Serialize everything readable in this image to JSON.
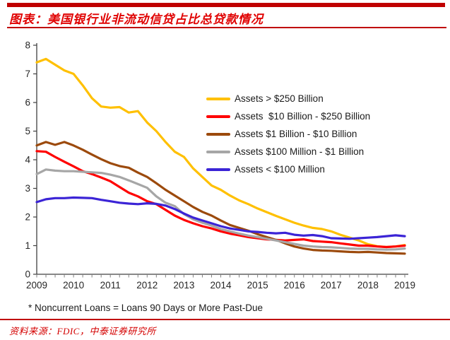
{
  "header": {
    "title": "图表：美国银行业非流动信贷占比总贷款情况"
  },
  "footnote": "* Noncurrent Loans = Loans 90 Days or More Past-Due",
  "source": "资料来源：FDIC，中泰证券研究所",
  "colors": {
    "accent_red": "#c00000",
    "title_text": "#e00000",
    "axis": "#404040",
    "tick": "#808080",
    "label": "#262626"
  },
  "chart_data": {
    "type": "line",
    "title": "",
    "xlabel": "",
    "ylabel": "",
    "x_range": [
      2009,
      2019
    ],
    "y_range": [
      0,
      8
    ],
    "x_ticks": [
      2009,
      2010,
      2011,
      2012,
      2013,
      2014,
      2015,
      2016,
      2017,
      2018,
      2019
    ],
    "y_ticks": [
      0,
      1,
      2,
      3,
      4,
      5,
      6,
      7,
      8
    ],
    "x_minor_step": 0.25,
    "grid": false,
    "legend_position": "top-right-inside",
    "x": [
      2009,
      2009.25,
      2009.5,
      2009.75,
      2010,
      2010.25,
      2010.5,
      2010.75,
      2011,
      2011.25,
      2011.5,
      2011.75,
      2012,
      2012.25,
      2012.5,
      2012.75,
      2013,
      2013.25,
      2013.5,
      2013.75,
      2014,
      2014.25,
      2014.5,
      2014.75,
      2015,
      2015.25,
      2015.5,
      2015.75,
      2016,
      2016.25,
      2016.5,
      2016.75,
      2017,
      2017.25,
      2017.5,
      2017.75,
      2018,
      2018.25,
      2018.5,
      2018.75,
      2019
    ],
    "series": [
      {
        "name": "Assets > $250 Billion",
        "color": "#ffc000",
        "values": [
          7.4,
          7.52,
          7.32,
          7.12,
          7.0,
          6.6,
          6.15,
          5.86,
          5.82,
          5.84,
          5.65,
          5.7,
          5.3,
          5.0,
          4.62,
          4.28,
          4.1,
          3.7,
          3.4,
          3.1,
          2.95,
          2.75,
          2.58,
          2.45,
          2.3,
          2.17,
          2.04,
          1.92,
          1.8,
          1.7,
          1.62,
          1.58,
          1.5,
          1.38,
          1.28,
          1.18,
          1.05,
          0.98,
          0.95,
          0.97,
          1.02
        ]
      },
      {
        "name": "Assets  $10 Billion - $250 Billion",
        "color": "#ff0000",
        "values": [
          4.3,
          4.28,
          4.1,
          3.93,
          3.77,
          3.6,
          3.5,
          3.38,
          3.25,
          3.05,
          2.85,
          2.72,
          2.55,
          2.45,
          2.25,
          2.05,
          1.9,
          1.78,
          1.68,
          1.6,
          1.5,
          1.42,
          1.36,
          1.3,
          1.26,
          1.22,
          1.2,
          1.18,
          1.2,
          1.22,
          1.16,
          1.14,
          1.12,
          1.08,
          1.04,
          1.0,
          1.0,
          0.97,
          0.95,
          0.97,
          1.0
        ]
      },
      {
        "name": "Assets $1 Billion - $10 Billion",
        "color": "#9c4a0c",
        "values": [
          4.5,
          4.62,
          4.52,
          4.62,
          4.5,
          4.35,
          4.18,
          4.02,
          3.88,
          3.78,
          3.72,
          3.55,
          3.4,
          3.18,
          2.95,
          2.75,
          2.55,
          2.35,
          2.18,
          2.05,
          1.88,
          1.72,
          1.62,
          1.52,
          1.4,
          1.3,
          1.2,
          1.08,
          0.97,
          0.9,
          0.85,
          0.83,
          0.82,
          0.8,
          0.78,
          0.77,
          0.78,
          0.76,
          0.74,
          0.73,
          0.72
        ]
      },
      {
        "name": "Assets $100 Million - $1 Billion",
        "color": "#a6a6a6",
        "values": [
          3.5,
          3.66,
          3.62,
          3.6,
          3.6,
          3.58,
          3.56,
          3.54,
          3.48,
          3.4,
          3.28,
          3.15,
          3.02,
          2.72,
          2.5,
          2.38,
          2.1,
          1.92,
          1.8,
          1.7,
          1.58,
          1.5,
          1.42,
          1.35,
          1.3,
          1.24,
          1.18,
          1.12,
          1.06,
          1.0,
          0.97,
          0.95,
          0.94,
          0.92,
          0.9,
          0.89,
          0.89,
          0.87,
          0.86,
          0.87,
          0.9
        ]
      },
      {
        "name": "Assets < $100 Million",
        "color": "#3b24d6",
        "values": [
          2.52,
          2.62,
          2.66,
          2.66,
          2.68,
          2.67,
          2.66,
          2.6,
          2.55,
          2.5,
          2.47,
          2.45,
          2.48,
          2.46,
          2.4,
          2.28,
          2.12,
          1.98,
          1.88,
          1.78,
          1.68,
          1.6,
          1.55,
          1.5,
          1.48,
          1.45,
          1.43,
          1.45,
          1.38,
          1.35,
          1.37,
          1.33,
          1.26,
          1.25,
          1.24,
          1.26,
          1.28,
          1.3,
          1.33,
          1.36,
          1.33
        ]
      }
    ]
  }
}
